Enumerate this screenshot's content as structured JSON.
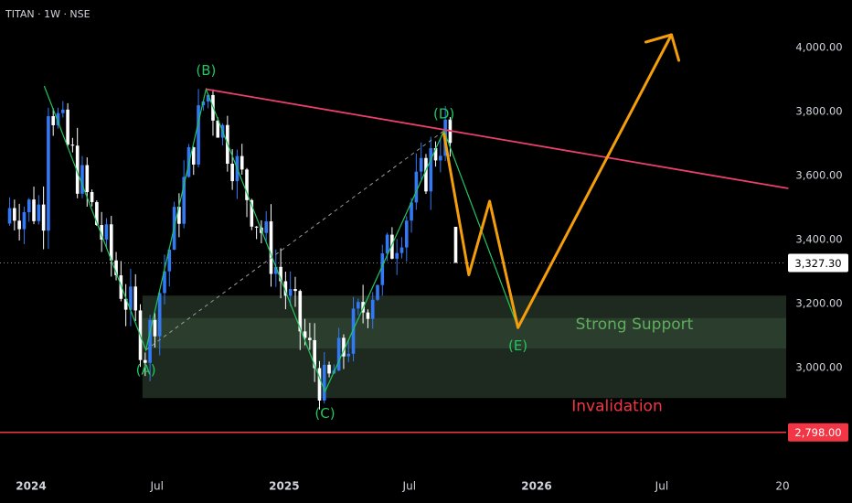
{
  "symbol_label": "TITAN · 1W · NSE",
  "colors": {
    "background": "#000000",
    "text": "#d1d4dc",
    "bull_candle": "#3179f5",
    "bear_candle": "#ffffff",
    "zigzag": "#22c55e",
    "trendline": "#e9406d",
    "projection": "#f59e0b",
    "support_zone": "#1e2a1f",
    "support_band": "#2b3d2c",
    "support_text": "#5fae5f",
    "invalidation": "#f23645",
    "current_price_box": "#ffffff",
    "dotted_line": "#8a8a8a"
  },
  "chart_data": {
    "type": "candlestick",
    "title": "TITAN · 1W · NSE",
    "x_axis": {
      "tick_labels": [
        "2024",
        "Jul",
        "2025",
        "Jul",
        "2026",
        "Jul",
        "20"
      ],
      "tick_dates": [
        "2024-01-01",
        "2024-07-01",
        "2025-01-01",
        "2025-07-01",
        "2026-01-01",
        "2026-07-01",
        "2027-01-01"
      ]
    },
    "y_axis": {
      "tick_labels": [
        "4,000.00",
        "3,800.00",
        "3,600.00",
        "3,400.00",
        "3,200.00",
        "3,000.00"
      ],
      "tick_values": [
        4000,
        3800,
        3600,
        3400,
        3200,
        3000
      ],
      "range": [
        2720,
        4150
      ]
    },
    "current_price": {
      "value": 3327.3,
      "label": "3,327.30"
    },
    "invalidation_level": {
      "value": 2798,
      "label": "2,798.00",
      "text": "Invalidation"
    },
    "support_zone": {
      "low": 2905,
      "high": 3225,
      "inner_low": 3060,
      "inner_high": 3155,
      "text": "Strong Support",
      "start": "2024-06-10"
    },
    "wave_points": [
      {
        "label": "",
        "date": "2024-01-20",
        "price": 3880
      },
      {
        "label": "(A)",
        "date": "2024-06-15",
        "price": 3055
      },
      {
        "label": "(B)",
        "date": "2024-09-10",
        "price": 3870
      },
      {
        "label": "(C)",
        "date": "2025-03-01",
        "price": 2925
      },
      {
        "label": "(D)",
        "date": "2025-08-20",
        "price": 3740
      },
      {
        "label": "(E)",
        "date": "2025-12-05",
        "price": 3125
      }
    ],
    "dashed_line": [
      {
        "date": "2024-06-15",
        "price": 3055
      },
      {
        "date": "2025-08-20",
        "price": 3740
      }
    ],
    "trendline": [
      {
        "date": "2024-09-10",
        "price": 3870
      },
      {
        "date": "2026-12-31",
        "price": 3560
      }
    ],
    "projection": [
      {
        "date": "2025-08-20",
        "price": 3730
      },
      {
        "date": "2025-09-25",
        "price": 3290
      },
      {
        "date": "2025-10-25",
        "price": 3520
      },
      {
        "date": "2025-12-05",
        "price": 3125
      },
      {
        "date": "2026-07-15",
        "price": 4040
      }
    ],
    "candles_generation": {
      "start": "2023-12-01",
      "weeks": 90,
      "seed": 7
    }
  }
}
